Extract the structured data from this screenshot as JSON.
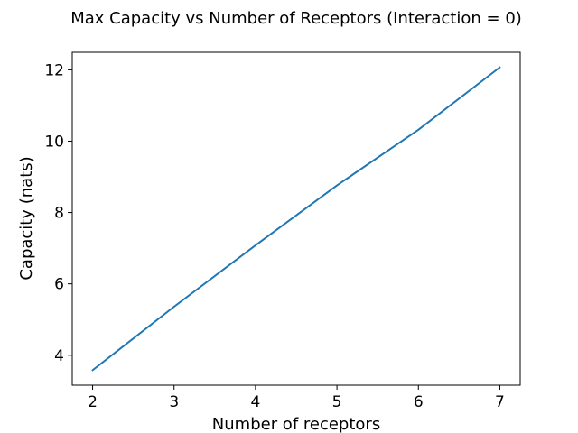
{
  "chart_data": {
    "type": "line",
    "title": "Max Capacity vs Number of Receptors (Interaction = 0)",
    "xlabel": "Number of receptors",
    "ylabel": "Capacity (nats)",
    "x": [
      2,
      3,
      4,
      5,
      6,
      7
    ],
    "series": [
      {
        "values": [
          3.58,
          5.36,
          7.08,
          8.76,
          10.32,
          12.07
        ],
        "color": "#1f77b4"
      }
    ],
    "xlim": [
      1.75,
      7.25
    ],
    "ylim": [
      3.16,
      12.49
    ],
    "xticks": [
      2,
      3,
      4,
      5,
      6,
      7
    ],
    "yticks": [
      4,
      6,
      8,
      10,
      12
    ],
    "grid": false,
    "legend": "none"
  }
}
